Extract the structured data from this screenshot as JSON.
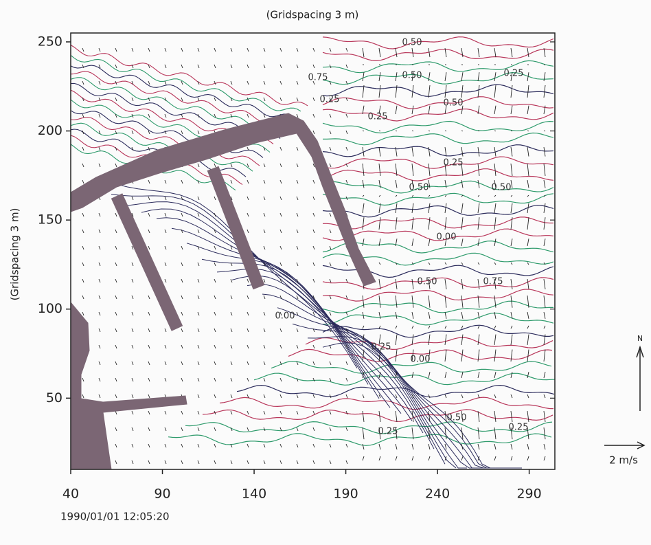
{
  "chart_data": {
    "type": "contour",
    "title": "(Gridspacing 3 m)",
    "y_label": "(Gridspacing 3 m)",
    "xlim": [
      40,
      304
    ],
    "xticks": [
      40,
      90,
      140,
      190,
      240,
      290
    ],
    "ylim": [
      10,
      255
    ],
    "yticks": [
      50,
      100,
      150,
      200,
      250
    ],
    "contour_labels": [
      "0.50",
      "0.25",
      "0.75",
      "0.00"
    ],
    "timestamp": "1990/01/01 12:05:20",
    "vector_scale_label": "2 m/s",
    "north_label": "N"
  }
}
